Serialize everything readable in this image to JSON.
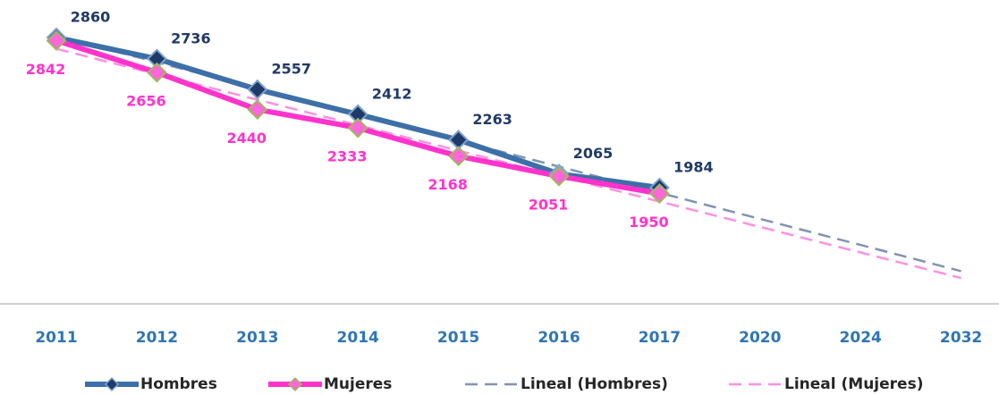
{
  "chart_data": {
    "type": "line",
    "categories": [
      "2011",
      "2012",
      "2013",
      "2014",
      "2015",
      "2016",
      "2017",
      "2020",
      "2024",
      "2032"
    ],
    "series": [
      {
        "name": "Hombres",
        "color": "#3d6fa8",
        "marker_color": "#1f3a66",
        "marker_edge": "#7fa3cf",
        "width": 6,
        "markers": true,
        "data_labels": true,
        "label_color": "#1f3a66",
        "values": [
          2860,
          2736,
          2557,
          2412,
          2263,
          2065,
          1984,
          null,
          null,
          null
        ]
      },
      {
        "name": "Mujeres",
        "color": "#ff33cc",
        "marker_color": "#ff66d9",
        "marker_edge": "#9bbb59",
        "width": 6,
        "markers": true,
        "data_labels": true,
        "label_color": "#ff33cc",
        "values": [
          2842,
          2656,
          2440,
          2333,
          2168,
          2051,
          1950,
          null,
          null,
          null
        ]
      },
      {
        "name": "Lineal (Hombres)",
        "color": "#7f94b0",
        "width": 2.5,
        "dashed": true,
        "values": [
          2868,
          2716,
          2564,
          2411,
          2259,
          2107,
          1954,
          1802,
          1650,
          1497
        ]
      },
      {
        "name": "Lineal (Mujeres)",
        "color": "#ff8fe0",
        "width": 2.5,
        "dashed": true,
        "values": [
          2794,
          2646,
          2497,
          2349,
          2200,
          2052,
          1903,
          1755,
          1606,
          1457
        ]
      }
    ],
    "legend": "bottom"
  }
}
